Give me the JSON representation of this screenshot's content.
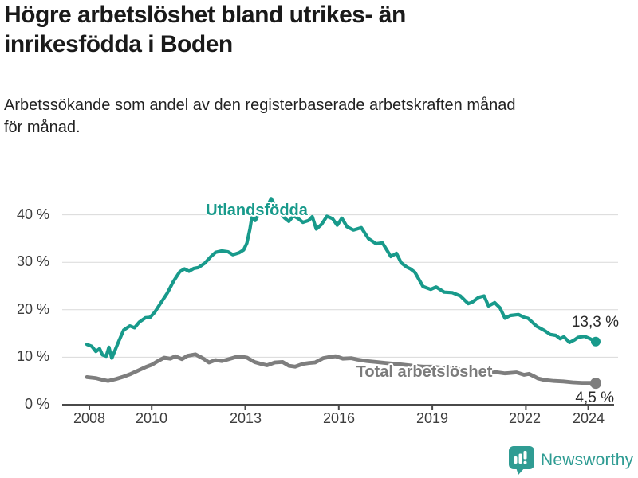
{
  "header": {
    "title_lines": [
      "Högre arbetslöshet bland utrikes- än",
      "inrikesfödda i Boden"
    ],
    "subtitle_lines": [
      "Arbetssökande som andel av den registerbaserade arbetskraften månad",
      "för månad."
    ]
  },
  "footer": {
    "brand": "Newsworthy",
    "logo_icon": "newsworthy-speech-bubble-bar-chart-icon"
  },
  "colors": {
    "foreign_born_line": "#189a8b",
    "total_line": "#7e7e7e",
    "brand_teal": "#2f9c93",
    "grid": "#d9d9d9",
    "axis": "#4a4a4a",
    "title_text": "#1a1a1a",
    "tick_text": "#3d3d3d",
    "value_label_text": "#2b2b2b"
  },
  "chart_data": {
    "type": "line",
    "title": "Högre arbetslöshet bland utrikes- än inrikesfödda i Boden",
    "subtitle": "Arbetssökande som andel av den registerbaserade arbetskraften månad för månad.",
    "unit": "%",
    "grid": true,
    "legend_position": "inline-labels",
    "x_axis": {
      "ticks": [
        2008,
        2010,
        2013,
        2016,
        2019,
        2022,
        2024
      ],
      "tick_labels": [
        "2008",
        "2010",
        "2013",
        "2016",
        "2019",
        "2022",
        "2024"
      ],
      "range": [
        2007.8,
        2024.8
      ]
    },
    "y_axis": {
      "ticks": [
        0,
        10,
        20,
        30,
        40
      ],
      "tick_labels": [
        "0 %",
        "10 %",
        "20 %",
        "30 %",
        "40 %"
      ],
      "range": [
        0,
        45
      ]
    },
    "series": [
      {
        "name": "Utlandsfödda",
        "color": "#189a8b",
        "end_label": "13,3 %",
        "end_value": 13.3,
        "points": [
          [
            2007.92,
            12.7
          ],
          [
            2008.08,
            12.3
          ],
          [
            2008.21,
            11.2
          ],
          [
            2008.33,
            11.8
          ],
          [
            2008.42,
            10.5
          ],
          [
            2008.54,
            10.2
          ],
          [
            2008.63,
            12.1
          ],
          [
            2008.72,
            9.8
          ],
          [
            2008.92,
            13.0
          ],
          [
            2009.1,
            15.7
          ],
          [
            2009.3,
            16.6
          ],
          [
            2009.45,
            16.2
          ],
          [
            2009.6,
            17.4
          ],
          [
            2009.8,
            18.3
          ],
          [
            2009.95,
            18.4
          ],
          [
            2010.1,
            19.5
          ],
          [
            2010.3,
            21.5
          ],
          [
            2010.5,
            23.5
          ],
          [
            2010.7,
            26.0
          ],
          [
            2010.9,
            28.0
          ],
          [
            2011.05,
            28.6
          ],
          [
            2011.2,
            28.1
          ],
          [
            2011.35,
            28.7
          ],
          [
            2011.5,
            28.9
          ],
          [
            2011.7,
            29.8
          ],
          [
            2011.9,
            31.2
          ],
          [
            2012.05,
            32.1
          ],
          [
            2012.25,
            32.4
          ],
          [
            2012.45,
            32.2
          ],
          [
            2012.6,
            31.6
          ],
          [
            2012.8,
            32.0
          ],
          [
            2012.95,
            32.6
          ],
          [
            2013.05,
            34.0
          ],
          [
            2013.15,
            37.0
          ],
          [
            2013.22,
            39.8
          ],
          [
            2013.32,
            38.8
          ],
          [
            2013.45,
            40.3
          ],
          [
            2013.6,
            41.0
          ],
          [
            2013.72,
            42.0
          ],
          [
            2013.83,
            43.4
          ],
          [
            2013.95,
            42.0
          ],
          [
            2014.1,
            40.6
          ],
          [
            2014.25,
            39.4
          ],
          [
            2014.4,
            38.6
          ],
          [
            2014.55,
            39.8
          ],
          [
            2014.7,
            39.2
          ],
          [
            2014.85,
            38.4
          ],
          [
            2015.03,
            38.8
          ],
          [
            2015.15,
            39.6
          ],
          [
            2015.28,
            37.0
          ],
          [
            2015.45,
            38.0
          ],
          [
            2015.62,
            39.7
          ],
          [
            2015.8,
            39.2
          ],
          [
            2015.95,
            37.8
          ],
          [
            2016.1,
            39.3
          ],
          [
            2016.26,
            37.5
          ],
          [
            2016.47,
            36.8
          ],
          [
            2016.72,
            37.3
          ],
          [
            2016.95,
            35.0
          ],
          [
            2017.2,
            33.9
          ],
          [
            2017.4,
            34.1
          ],
          [
            2017.67,
            31.2
          ],
          [
            2017.85,
            31.9
          ],
          [
            2018.0,
            29.9
          ],
          [
            2018.18,
            29.0
          ],
          [
            2018.3,
            28.6
          ],
          [
            2018.44,
            27.9
          ],
          [
            2018.7,
            24.9
          ],
          [
            2018.95,
            24.3
          ],
          [
            2019.12,
            24.8
          ],
          [
            2019.38,
            23.7
          ],
          [
            2019.64,
            23.6
          ],
          [
            2019.9,
            22.9
          ],
          [
            2020.15,
            21.3
          ],
          [
            2020.28,
            21.6
          ],
          [
            2020.48,
            22.6
          ],
          [
            2020.66,
            22.9
          ],
          [
            2020.8,
            20.8
          ],
          [
            2021.0,
            21.5
          ],
          [
            2021.17,
            20.4
          ],
          [
            2021.33,
            18.2
          ],
          [
            2021.5,
            18.8
          ],
          [
            2021.76,
            19.0
          ],
          [
            2021.94,
            18.4
          ],
          [
            2022.07,
            18.2
          ],
          [
            2022.35,
            16.5
          ],
          [
            2022.6,
            15.6
          ],
          [
            2022.78,
            14.8
          ],
          [
            2022.96,
            14.6
          ],
          [
            2023.1,
            13.9
          ],
          [
            2023.22,
            14.3
          ],
          [
            2023.4,
            13.1
          ],
          [
            2023.55,
            13.6
          ],
          [
            2023.68,
            14.2
          ],
          [
            2023.88,
            14.4
          ],
          [
            2024.06,
            13.9
          ],
          [
            2024.24,
            13.3
          ]
        ]
      },
      {
        "name": "Total arbetslöshet",
        "color": "#7e7e7e",
        "end_label": "4,5 %",
        "end_value": 4.5,
        "points": [
          [
            2007.92,
            5.8
          ],
          [
            2008.2,
            5.6
          ],
          [
            2008.45,
            5.2
          ],
          [
            2008.6,
            5.0
          ],
          [
            2008.85,
            5.4
          ],
          [
            2009.1,
            5.9
          ],
          [
            2009.3,
            6.4
          ],
          [
            2009.6,
            7.3
          ],
          [
            2009.8,
            7.9
          ],
          [
            2010.0,
            8.4
          ],
          [
            2010.2,
            9.2
          ],
          [
            2010.4,
            9.9
          ],
          [
            2010.6,
            9.7
          ],
          [
            2010.76,
            10.2
          ],
          [
            2010.97,
            9.6
          ],
          [
            2011.15,
            10.3
          ],
          [
            2011.4,
            10.6
          ],
          [
            2011.66,
            9.7
          ],
          [
            2011.84,
            8.9
          ],
          [
            2012.04,
            9.4
          ],
          [
            2012.25,
            9.2
          ],
          [
            2012.42,
            9.5
          ],
          [
            2012.68,
            10.0
          ],
          [
            2012.9,
            10.1
          ],
          [
            2013.06,
            9.9
          ],
          [
            2013.3,
            9.0
          ],
          [
            2013.5,
            8.6
          ],
          [
            2013.7,
            8.3
          ],
          [
            2013.95,
            8.9
          ],
          [
            2014.2,
            9.0
          ],
          [
            2014.4,
            8.2
          ],
          [
            2014.6,
            8.0
          ],
          [
            2014.85,
            8.6
          ],
          [
            2015.05,
            8.8
          ],
          [
            2015.24,
            8.9
          ],
          [
            2015.5,
            9.8
          ],
          [
            2015.75,
            10.1
          ],
          [
            2015.9,
            10.2
          ],
          [
            2016.13,
            9.7
          ],
          [
            2016.4,
            9.8
          ],
          [
            2016.6,
            9.5
          ],
          [
            2016.9,
            9.2
          ],
          [
            2017.2,
            9.0
          ],
          [
            2017.5,
            8.8
          ],
          [
            2017.8,
            8.6
          ],
          [
            2018.1,
            8.4
          ],
          [
            2018.4,
            8.2
          ],
          [
            2018.7,
            8.0
          ],
          [
            2019.0,
            8.0
          ],
          [
            2019.3,
            7.8
          ],
          [
            2019.6,
            7.6
          ],
          [
            2019.9,
            7.4
          ],
          [
            2020.2,
            7.3
          ],
          [
            2020.5,
            7.2
          ],
          [
            2020.8,
            7.0
          ],
          [
            2021.1,
            6.8
          ],
          [
            2021.33,
            6.6
          ],
          [
            2021.7,
            6.8
          ],
          [
            2021.94,
            6.3
          ],
          [
            2022.1,
            6.5
          ],
          [
            2022.25,
            6.0
          ],
          [
            2022.4,
            5.5
          ],
          [
            2022.6,
            5.2
          ],
          [
            2022.9,
            5.0
          ],
          [
            2023.2,
            4.9
          ],
          [
            2023.5,
            4.7
          ],
          [
            2023.8,
            4.6
          ],
          [
            2024.06,
            4.6
          ],
          [
            2024.24,
            4.5
          ]
        ]
      }
    ]
  }
}
